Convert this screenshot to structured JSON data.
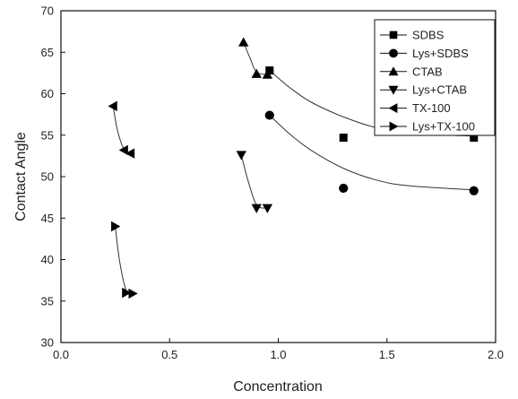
{
  "chart_data": {
    "type": "scatter",
    "xlabel": "Concentration",
    "ylabel": "Contact Angle",
    "xlim": [
      0.0,
      2.0
    ],
    "ylim": [
      30,
      70
    ],
    "x_ticks": [
      "0.0",
      "0.5",
      "1.0",
      "1.5",
      "2.0"
    ],
    "y_ticks": [
      "30",
      "35",
      "40",
      "45",
      "50",
      "55",
      "60",
      "65",
      "70"
    ],
    "legend_position": "top-right",
    "grid": false,
    "series": [
      {
        "name": "SDBS",
        "marker": "square",
        "x": [
          0.96,
          1.3,
          1.9
        ],
        "y": [
          62.8,
          54.7,
          54.7
        ],
        "fit": [
          [
            0.96,
            62.8
          ],
          [
            1.05,
            60.8
          ],
          [
            1.15,
            59.0
          ],
          [
            1.3,
            57.2
          ],
          [
            1.45,
            55.9
          ],
          [
            1.6,
            55.2
          ],
          [
            1.9,
            54.9
          ]
        ]
      },
      {
        "name": "Lys+SDBS",
        "marker": "circle",
        "x": [
          0.96,
          1.3,
          1.9
        ],
        "y": [
          57.4,
          48.6,
          48.3
        ],
        "fit": [
          [
            0.96,
            57.4
          ],
          [
            1.05,
            55.2
          ],
          [
            1.15,
            53.2
          ],
          [
            1.3,
            51.0
          ],
          [
            1.45,
            49.6
          ],
          [
            1.6,
            48.9
          ],
          [
            1.9,
            48.4
          ]
        ]
      },
      {
        "name": "CTAB",
        "marker": "triangle-up",
        "x": [
          0.84,
          0.9,
          0.95
        ],
        "y": [
          66.2,
          62.4,
          62.3
        ],
        "fit": [
          [
            0.84,
            66.2
          ],
          [
            0.87,
            64.3
          ],
          [
            0.9,
            62.6
          ],
          [
            0.95,
            62.3
          ]
        ]
      },
      {
        "name": "Lys+CTAB",
        "marker": "triangle-down",
        "x": [
          0.83,
          0.9,
          0.95
        ],
        "y": [
          52.6,
          46.2,
          46.2
        ],
        "fit": [
          [
            0.83,
            52.6
          ],
          [
            0.86,
            49.6
          ],
          [
            0.9,
            46.6
          ],
          [
            0.95,
            46.2
          ]
        ]
      },
      {
        "name": "TX-100",
        "marker": "triangle-left",
        "x": [
          0.24,
          0.29,
          0.32
        ],
        "y": [
          58.5,
          53.2,
          52.8
        ],
        "fit": [
          [
            0.24,
            58.5
          ],
          [
            0.26,
            55.6
          ],
          [
            0.29,
            53.3
          ],
          [
            0.32,
            52.8
          ]
        ]
      },
      {
        "name": "Lys+TX-100",
        "marker": "triangle-right",
        "x": [
          0.25,
          0.3,
          0.33
        ],
        "y": [
          44.0,
          36.0,
          35.9
        ],
        "fit": [
          [
            0.25,
            44.0
          ],
          [
            0.27,
            39.8
          ],
          [
            0.3,
            36.3
          ],
          [
            0.33,
            35.9
          ]
        ]
      }
    ]
  }
}
